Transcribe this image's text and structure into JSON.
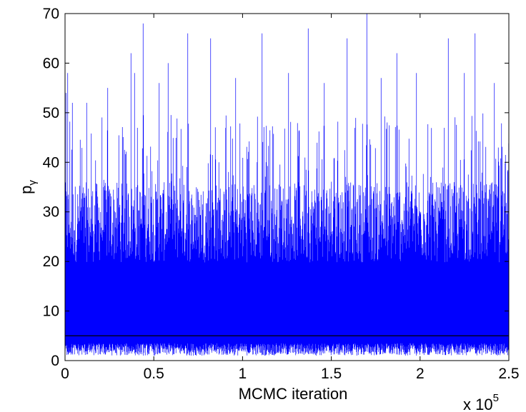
{
  "chart_data": {
    "type": "line",
    "title": "",
    "xlabel": "MCMC iteration",
    "ylabel": "p",
    "ylabel_subscript": "γ",
    "x_multiplier": "x 10",
    "x_multiplier_exponent": "5",
    "xlim": [
      0,
      2.5
    ],
    "ylim": [
      0,
      70
    ],
    "x_ticks": [
      {
        "value": 0,
        "label": "0"
      },
      {
        "value": 0.5,
        "label": "0.5"
      },
      {
        "value": 1,
        "label": "1"
      },
      {
        "value": 1.5,
        "label": "1.5"
      },
      {
        "value": 2,
        "label": "2"
      },
      {
        "value": 2.5,
        "label": "2.5"
      }
    ],
    "y_ticks": [
      {
        "value": 0,
        "label": "0"
      },
      {
        "value": 10,
        "label": "10"
      },
      {
        "value": 20,
        "label": "20"
      },
      {
        "value": 30,
        "label": "30"
      },
      {
        "value": 40,
        "label": "40"
      },
      {
        "value": 50,
        "label": "50"
      },
      {
        "value": 60,
        "label": "60"
      },
      {
        "value": 70,
        "label": "70"
      }
    ],
    "grid": false,
    "series": [
      {
        "color": "#0000ff",
        "trace": {
          "typical_low": 1,
          "typical_high": 36,
          "peaks": [
            {
              "x": 0.005,
              "y": 54
            },
            {
              "x": 0.015,
              "y": 58
            },
            {
              "x": 0.04,
              "y": 52
            },
            {
              "x": 0.12,
              "y": 52
            },
            {
              "x": 0.24,
              "y": 55
            },
            {
              "x": 0.37,
              "y": 62
            },
            {
              "x": 0.39,
              "y": 58
            },
            {
              "x": 0.44,
              "y": 68
            },
            {
              "x": 0.53,
              "y": 56
            },
            {
              "x": 0.58,
              "y": 60
            },
            {
              "x": 0.69,
              "y": 66
            },
            {
              "x": 0.82,
              "y": 65
            },
            {
              "x": 0.96,
              "y": 57
            },
            {
              "x": 1.11,
              "y": 66
            },
            {
              "x": 1.26,
              "y": 58
            },
            {
              "x": 1.37,
              "y": 67
            },
            {
              "x": 1.46,
              "y": 56
            },
            {
              "x": 1.59,
              "y": 65
            },
            {
              "x": 1.7,
              "y": 70
            },
            {
              "x": 1.78,
              "y": 57
            },
            {
              "x": 1.87,
              "y": 62
            },
            {
              "x": 1.98,
              "y": 58
            },
            {
              "x": 2.16,
              "y": 65
            },
            {
              "x": 2.25,
              "y": 58
            },
            {
              "x": 2.31,
              "y": 66
            },
            {
              "x": 2.42,
              "y": 56
            }
          ]
        }
      },
      {
        "color": "#000000",
        "constant_value": 5
      }
    ]
  }
}
